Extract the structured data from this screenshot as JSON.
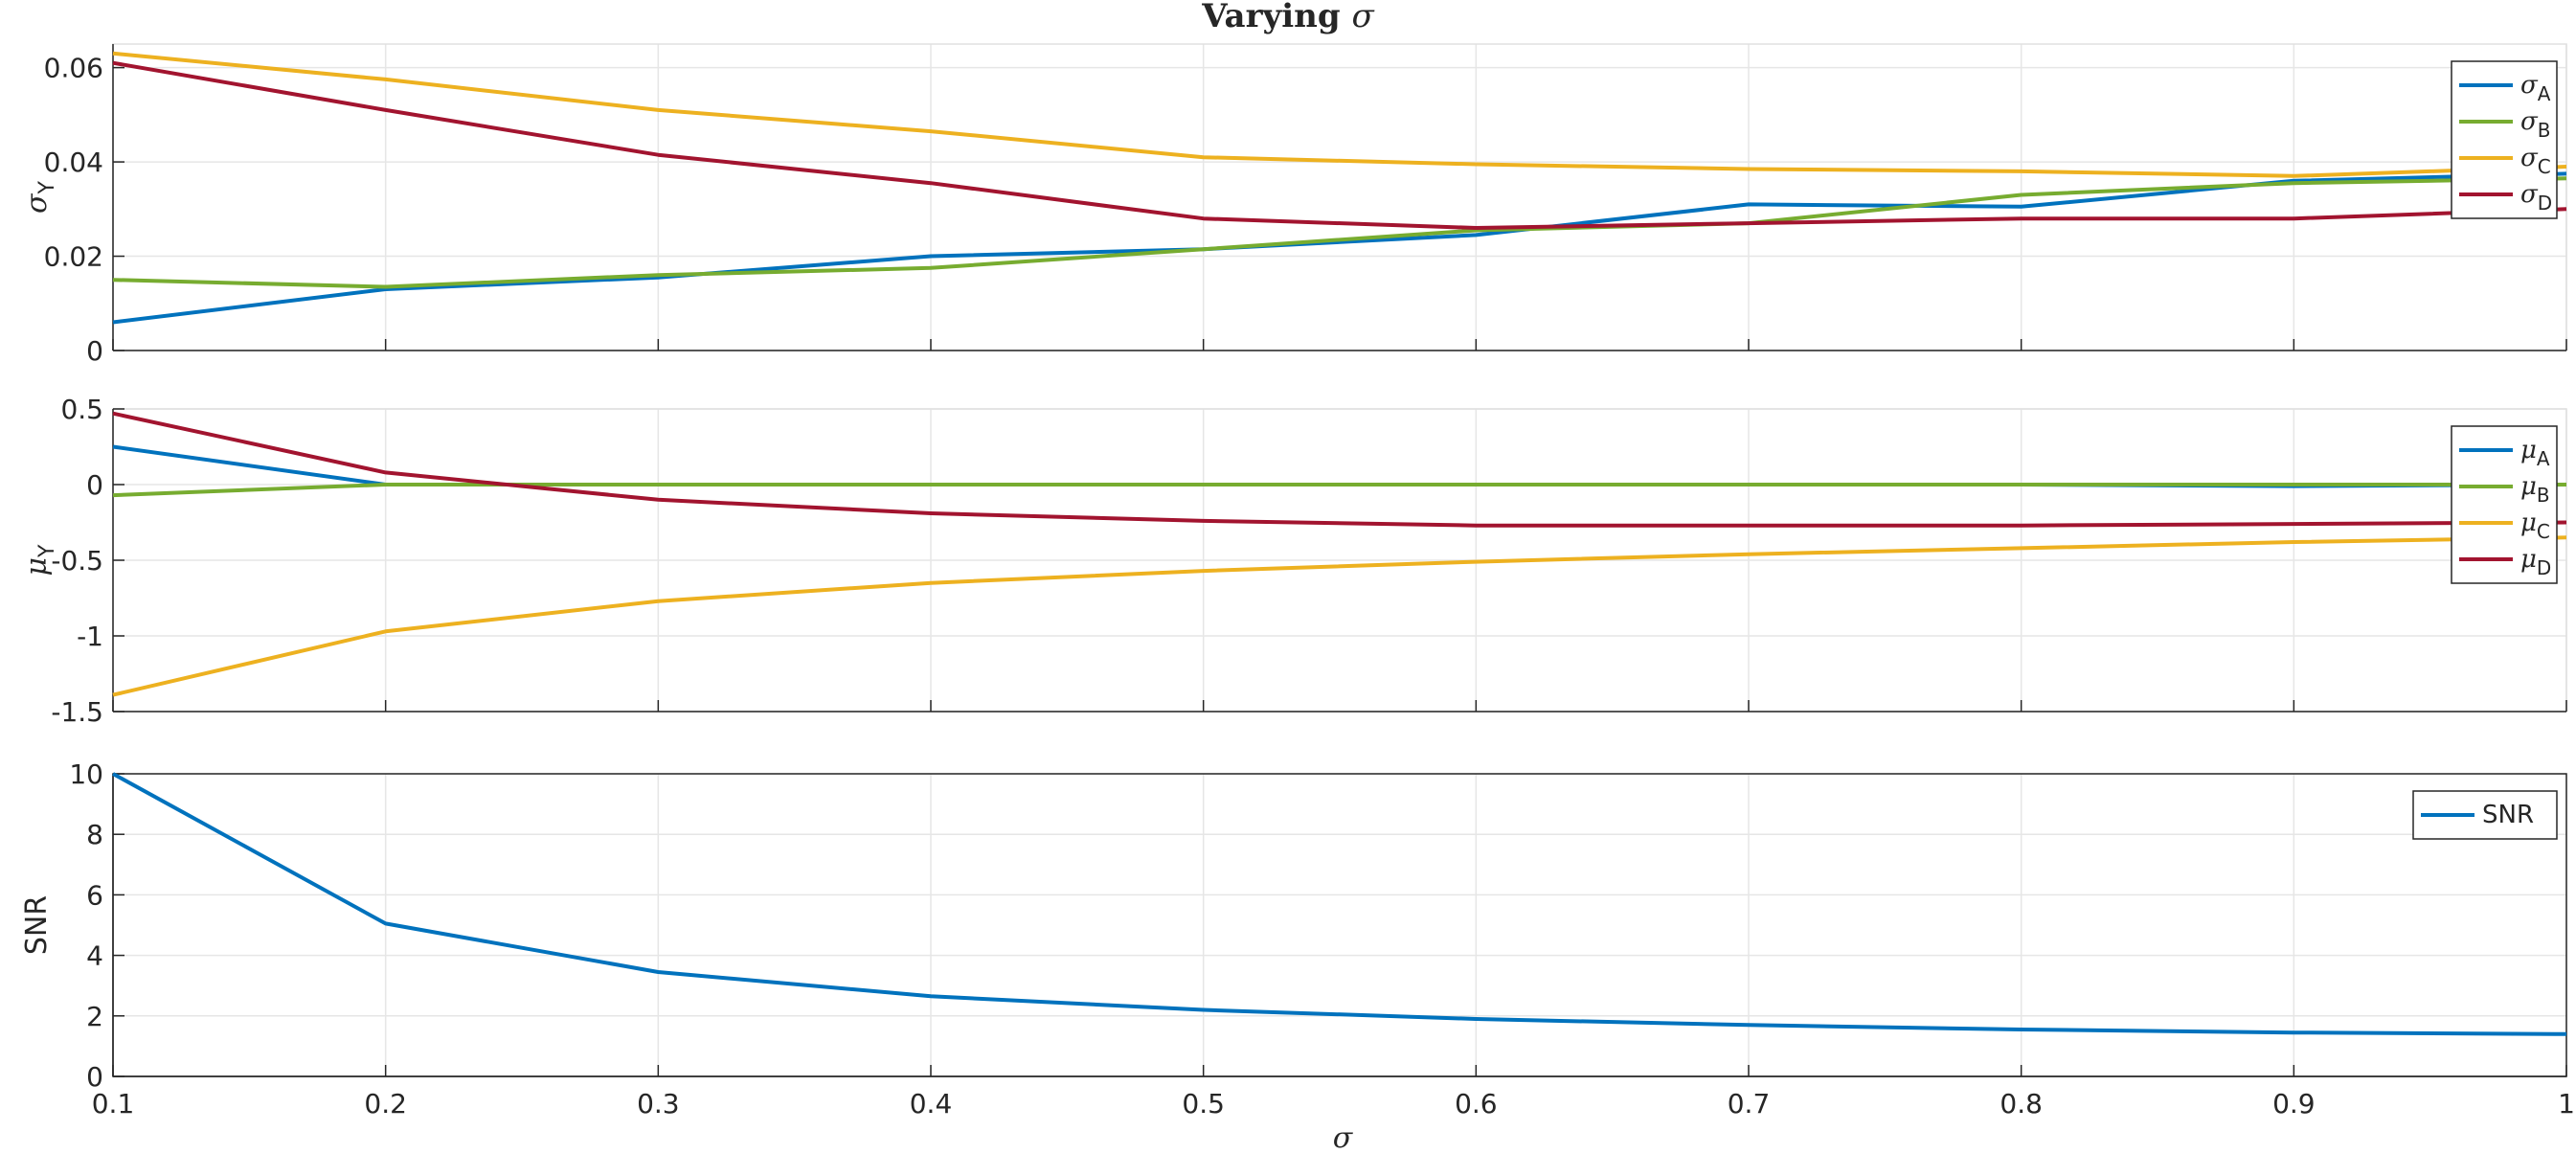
{
  "figure": {
    "title": "Varying",
    "title_symbol": "σ",
    "xlabel": "σ"
  },
  "chart_data": [
    {
      "type": "line",
      "title": "Varying σ",
      "xlabel": "",
      "ylabel": "σ",
      "ylabel_sub": "Y",
      "xlim": [
        0.1,
        1
      ],
      "ylim": [
        0,
        0.065
      ],
      "xticks": [
        0.1,
        0.2,
        0.3,
        0.4,
        0.5,
        0.6,
        0.7,
        0.8,
        0.9,
        1
      ],
      "yticks": [
        0,
        0.02,
        0.04,
        0.06
      ],
      "ytick_labels": [
        "0",
        "0.02",
        "0.04",
        "0.06"
      ],
      "show_xtick_labels": false,
      "grid": true,
      "legend": "top-right",
      "x": [
        0.1,
        0.2,
        0.3,
        0.4,
        0.5,
        0.6,
        0.7,
        0.8,
        0.9,
        1.0
      ],
      "series": [
        {
          "name": "σ",
          "sub": "A",
          "color": "#0072BD",
          "values": [
            0.006,
            0.013,
            0.0155,
            0.02,
            0.0215,
            0.0245,
            0.031,
            0.0305,
            0.036,
            0.0375
          ]
        },
        {
          "name": "σ",
          "sub": "B",
          "color": "#77AC30",
          "values": [
            0.015,
            0.0135,
            0.016,
            0.0175,
            0.0215,
            0.0255,
            0.027,
            0.033,
            0.0355,
            0.0365
          ]
        },
        {
          "name": "σ",
          "sub": "C",
          "color": "#EDB120",
          "values": [
            0.063,
            0.0575,
            0.051,
            0.0465,
            0.041,
            0.0395,
            0.0385,
            0.038,
            0.037,
            0.039
          ]
        },
        {
          "name": "σ",
          "sub": "D",
          "color": "#A2142F",
          "values": [
            0.061,
            0.051,
            0.0415,
            0.0355,
            0.028,
            0.026,
            0.027,
            0.028,
            0.028,
            0.03
          ]
        }
      ]
    },
    {
      "type": "line",
      "xlabel": "",
      "ylabel": "μ",
      "ylabel_sub": "Y",
      "xlim": [
        0.1,
        1
      ],
      "ylim": [
        -1.5,
        0.5
      ],
      "xticks": [
        0.1,
        0.2,
        0.3,
        0.4,
        0.5,
        0.6,
        0.7,
        0.8,
        0.9,
        1
      ],
      "yticks": [
        -1.5,
        -1,
        -0.5,
        0,
        0.5
      ],
      "ytick_labels": [
        "-1.5",
        "-1",
        "-0.5",
        "0",
        "0.5"
      ],
      "show_xtick_labels": false,
      "grid": true,
      "legend": "top-right",
      "x": [
        0.1,
        0.2,
        0.3,
        0.4,
        0.5,
        0.6,
        0.7,
        0.8,
        0.9,
        1.0
      ],
      "series": [
        {
          "name": "μ",
          "sub": "A",
          "color": "#0072BD",
          "values": [
            0.25,
            0.0,
            0.0,
            0.0,
            0.0,
            0.0,
            0.0,
            0.0,
            -0.01,
            0.0
          ]
        },
        {
          "name": "μ",
          "sub": "B",
          "color": "#77AC30",
          "values": [
            -0.07,
            0.0,
            0.0,
            0.0,
            0.0,
            0.0,
            0.0,
            0.0,
            0.0,
            0.0
          ]
        },
        {
          "name": "μ",
          "sub": "C",
          "color": "#EDB120",
          "values": [
            -1.39,
            -0.97,
            -0.77,
            -0.65,
            -0.57,
            -0.51,
            -0.46,
            -0.42,
            -0.38,
            -0.35
          ]
        },
        {
          "name": "μ",
          "sub": "D",
          "color": "#A2142F",
          "values": [
            0.47,
            0.08,
            -0.1,
            -0.19,
            -0.24,
            -0.27,
            -0.27,
            -0.27,
            -0.26,
            -0.25
          ]
        }
      ]
    },
    {
      "type": "line",
      "xlabel": "σ",
      "ylabel": "SNR",
      "xlim": [
        0.1,
        1
      ],
      "ylim": [
        0,
        10
      ],
      "xticks": [
        0.1,
        0.2,
        0.3,
        0.4,
        0.5,
        0.6,
        0.7,
        0.8,
        0.9,
        1
      ],
      "xtick_labels": [
        "0.1",
        "0.2",
        "0.3",
        "0.4",
        "0.5",
        "0.6",
        "0.7",
        "0.8",
        "0.9",
        "1"
      ],
      "yticks": [
        0,
        2,
        4,
        6,
        8,
        10
      ],
      "ytick_labels": [
        "0",
        "2",
        "4",
        "6",
        "8",
        "10"
      ],
      "show_xtick_labels": true,
      "grid": true,
      "legend": "top-right",
      "x": [
        0.1,
        0.2,
        0.3,
        0.4,
        0.5,
        0.6,
        0.7,
        0.8,
        0.9,
        1.0
      ],
      "series": [
        {
          "name": "SNR",
          "color": "#0072BD",
          "values": [
            10.0,
            5.05,
            3.45,
            2.65,
            2.2,
            1.9,
            1.7,
            1.55,
            1.45,
            1.4
          ]
        }
      ]
    }
  ]
}
